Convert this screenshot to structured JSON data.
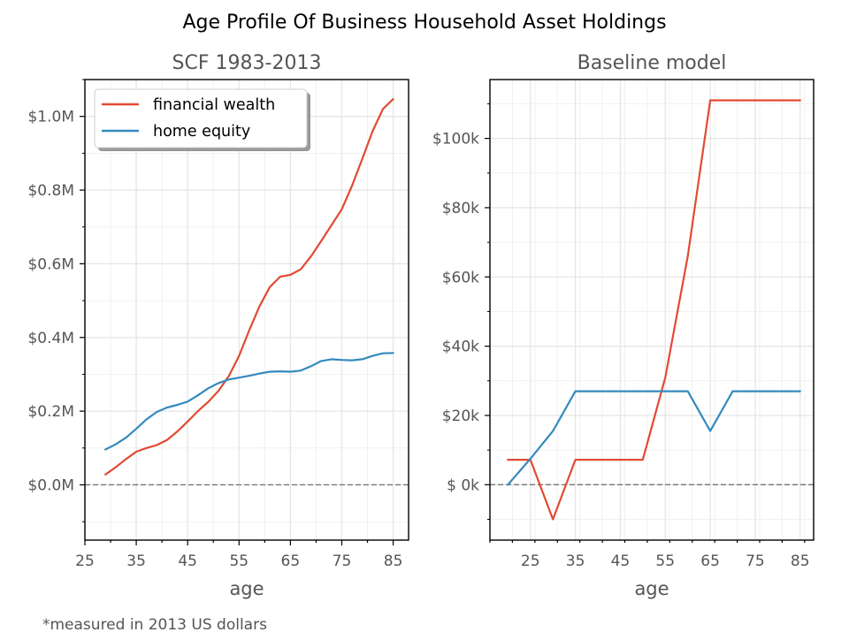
{
  "figure": {
    "title": "Age Profile Of Business Household Asset Holdings",
    "footnote": "*measured in 2013 US dollars"
  },
  "colors": {
    "financial": "#E24A33",
    "home": "#348ABD",
    "grid": "#e5e5e5",
    "zero_line": "#777777"
  },
  "chart_data": [
    {
      "type": "line",
      "title": "SCF 1983-2013",
      "xlabel": "age",
      "ylabel": "",
      "xlim": [
        25,
        88
      ],
      "ylim": [
        -150000,
        1100000
      ],
      "xticks": [
        25,
        35,
        45,
        55,
        65,
        75,
        85
      ],
      "yticks": [
        0,
        200000,
        400000,
        600000,
        800000,
        1000000
      ],
      "ytick_labels": [
        "$0.0M",
        "$0.2M",
        "$0.4M",
        "$0.6M",
        "$0.8M",
        "$1.0M"
      ],
      "grid": true,
      "zero_line": true,
      "legend": "upper-left",
      "series": [
        {
          "name": "financial wealth",
          "x": [
            29,
            31,
            33,
            35,
            37,
            39,
            41,
            43,
            45,
            47,
            49,
            51,
            53,
            55,
            57,
            59,
            61,
            63,
            65,
            67,
            69,
            71,
            73,
            75,
            77,
            79,
            81,
            83,
            85
          ],
          "y": [
            28000,
            48000,
            70000,
            90000,
            100000,
            108000,
            122000,
            145000,
            172000,
            200000,
            225000,
            255000,
            295000,
            350000,
            420000,
            485000,
            537000,
            565000,
            570000,
            585000,
            620000,
            662000,
            705000,
            748000,
            812000,
            885000,
            960000,
            1020000,
            1047000
          ]
        },
        {
          "name": "home equity",
          "x": [
            29,
            31,
            33,
            35,
            37,
            39,
            41,
            43,
            45,
            47,
            49,
            51,
            53,
            55,
            57,
            59,
            61,
            63,
            65,
            67,
            69,
            71,
            73,
            75,
            77,
            79,
            81,
            83,
            85
          ],
          "y": [
            96000,
            110000,
            128000,
            152000,
            178000,
            198000,
            210000,
            217000,
            226000,
            243000,
            262000,
            276000,
            286000,
            291000,
            296000,
            302000,
            307000,
            308000,
            307000,
            310000,
            322000,
            336000,
            341000,
            339000,
            338000,
            341000,
            350000,
            357000,
            358000
          ]
        }
      ]
    },
    {
      "type": "line",
      "title": "Baseline model",
      "xlabel": "age",
      "ylabel": "",
      "xlim": [
        16,
        88
      ],
      "ylim": [
        -16000,
        117000
      ],
      "xticks": [
        25,
        35,
        45,
        55,
        65,
        75,
        85
      ],
      "yticks": [
        0,
        20000,
        40000,
        60000,
        80000,
        100000
      ],
      "ytick_labels": [
        "$ 0k",
        "$20k",
        "$40k",
        "$60k",
        "$80k",
        "$100k"
      ],
      "grid": true,
      "zero_line": true,
      "series": [
        {
          "name": "financial wealth",
          "x": [
            20,
            25,
            30,
            35,
            40,
            45,
            50,
            55,
            60,
            65,
            70,
            75,
            80,
            85
          ],
          "y": [
            7200,
            7200,
            -10000,
            7200,
            7200,
            7200,
            7200,
            31000,
            66000,
            111000,
            111000,
            111000,
            111000,
            111000
          ]
        },
        {
          "name": "home equity",
          "x": [
            20,
            25,
            30,
            35,
            40,
            45,
            50,
            55,
            60,
            65,
            70,
            75,
            80,
            85
          ],
          "y": [
            0,
            7500,
            15500,
            27000,
            27000,
            27000,
            27000,
            27000,
            27000,
            15500,
            27000,
            27000,
            27000,
            27000
          ]
        }
      ]
    }
  ]
}
